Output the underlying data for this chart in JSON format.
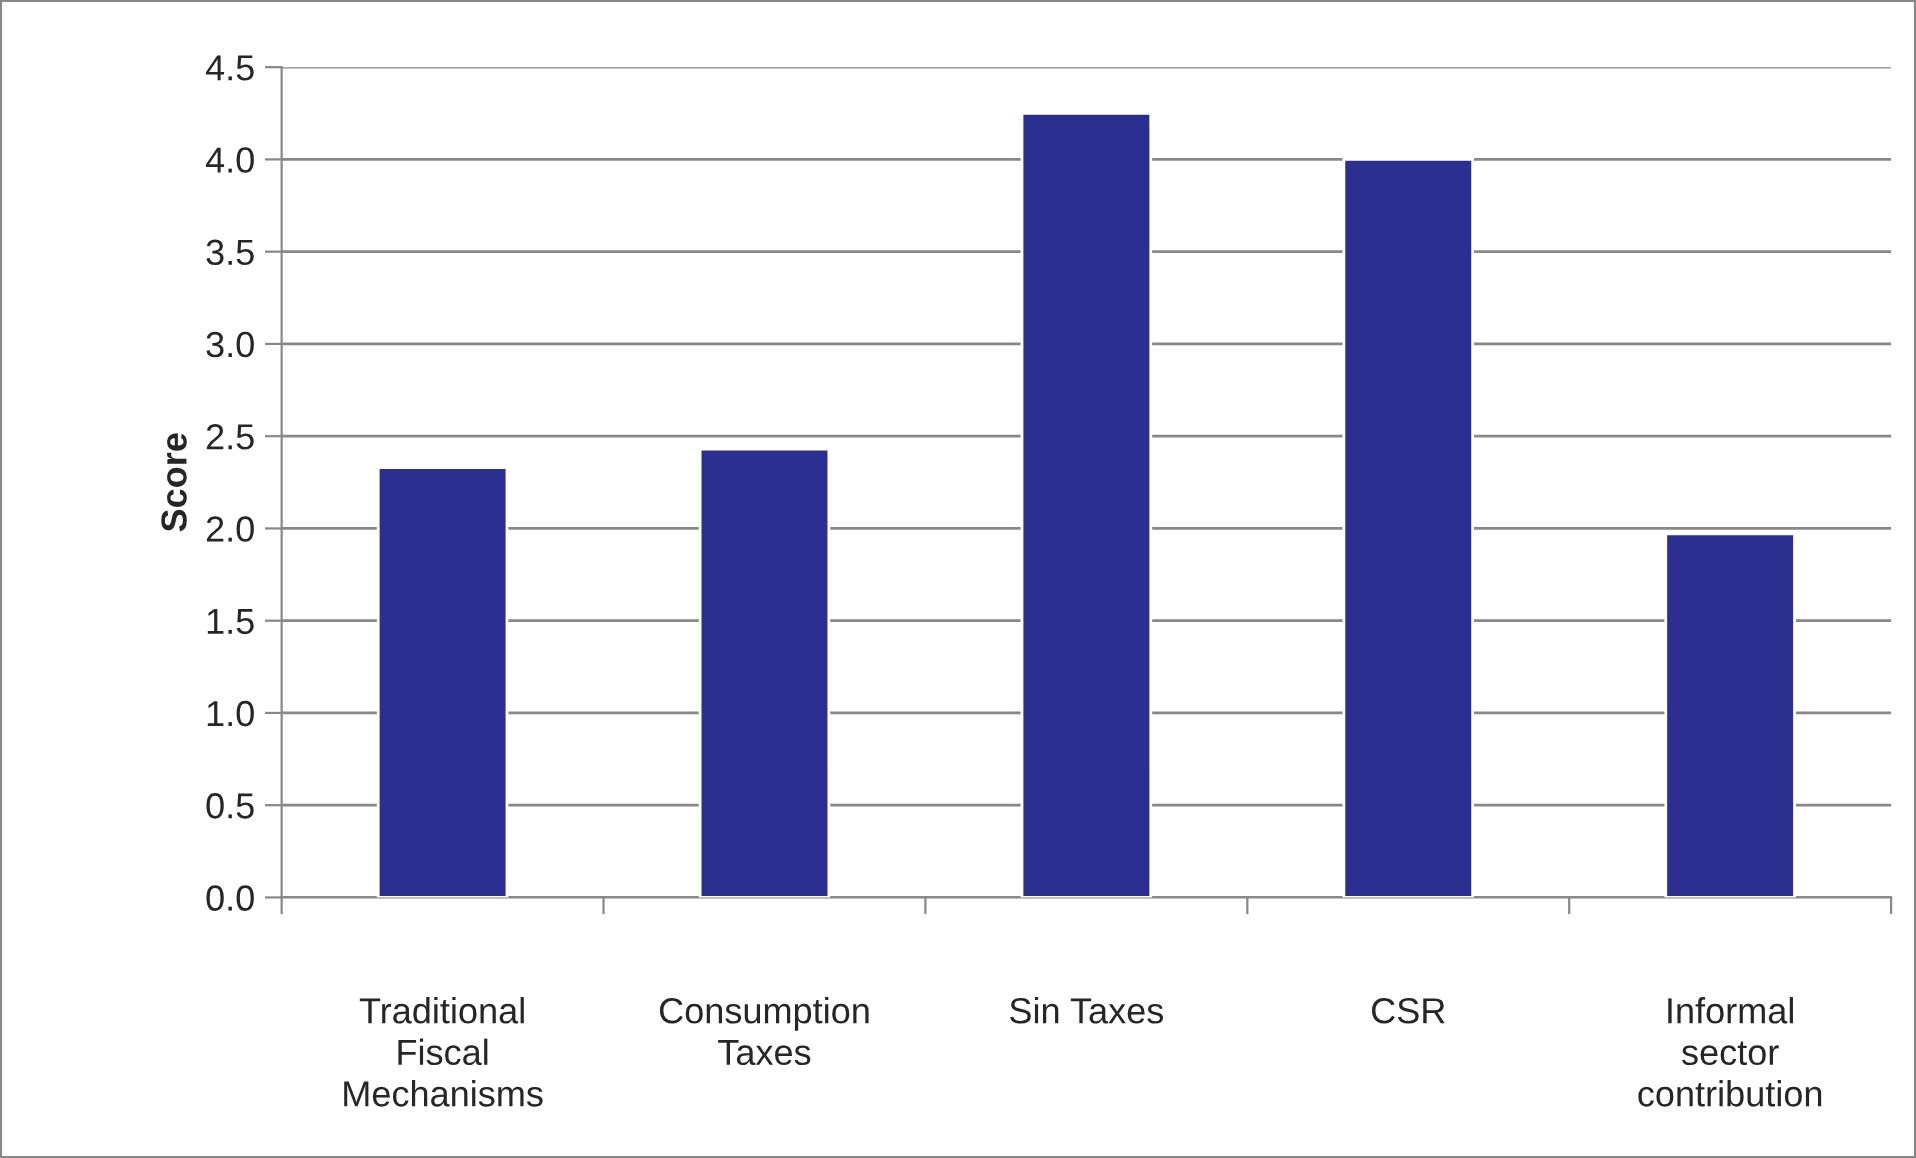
{
  "chart_data": {
    "type": "bar",
    "ylabel": "Score",
    "categories": [
      "Traditional\nFiscal\nMechanisms",
      "Consumption\nTaxes",
      "Sin Taxes",
      "CSR",
      "Informal\nsector\ncontribution"
    ],
    "values": [
      2.33,
      2.43,
      4.25,
      4.0,
      1.97
    ],
    "color": "#2b2f8f",
    "ylim": [
      0,
      4.5
    ],
    "yticks": [
      {
        "value": 0,
        "label": "0.0"
      },
      {
        "value": 0.5,
        "label": "0.5"
      },
      {
        "value": 1,
        "label": "1.0"
      },
      {
        "value": 1.5,
        "label": "1.5"
      },
      {
        "value": 2,
        "label": "2.0"
      },
      {
        "value": 2.5,
        "label": "2.5"
      },
      {
        "value": 3,
        "label": "3.0"
      },
      {
        "value": 3.5,
        "label": "3.5"
      },
      {
        "value": 4,
        "label": "4.0"
      },
      {
        "value": 4.5,
        "label": "4.5"
      }
    ],
    "grid": "y",
    "legend": false
  }
}
